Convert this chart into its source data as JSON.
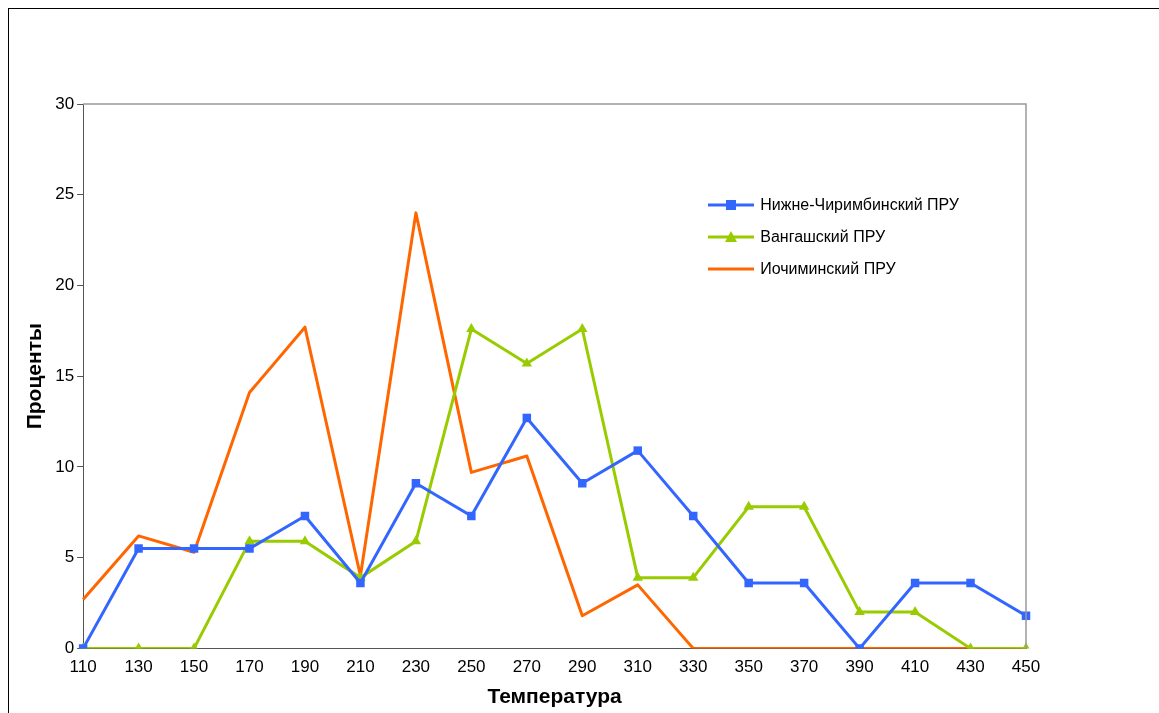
{
  "chart_data": {
    "type": "line",
    "xlabel": "Температура",
    "ylabel": "Проценты",
    "categories": [
      "110",
      "130",
      "150",
      "170",
      "190",
      "210",
      "230",
      "250",
      "270",
      "290",
      "310",
      "330",
      "350",
      "370",
      "390",
      "410",
      "430",
      "450"
    ],
    "ylim": [
      0,
      30
    ],
    "yticks": [
      0,
      5,
      10,
      15,
      20,
      25,
      30
    ],
    "grid": false,
    "legend": "top right",
    "series": [
      {
        "name": "Нижне-Чиримбинский ПРУ",
        "color": "#3366ff",
        "marker": "square",
        "values": [
          0,
          5.5,
          5.5,
          5.5,
          7.3,
          3.6,
          9.1,
          7.3,
          12.7,
          9.1,
          10.9,
          7.3,
          3.6,
          3.6,
          0,
          3.6,
          3.6,
          1.8
        ]
      },
      {
        "name": "Вангашский ПРУ",
        "color": "#99cc00",
        "marker": "triangle",
        "values": [
          0,
          0,
          0,
          5.9,
          5.9,
          3.9,
          5.9,
          17.6,
          15.7,
          17.6,
          3.9,
          3.9,
          7.8,
          7.8,
          2.0,
          2.0,
          0,
          0
        ]
      },
      {
        "name": "Иочиминский ПРУ",
        "color": "#ff6600",
        "marker": "none",
        "values": [
          2.7,
          6.2,
          5.3,
          14.1,
          17.7,
          4.0,
          24.0,
          9.7,
          10.6,
          1.8,
          3.5,
          0,
          0,
          0,
          0,
          0,
          0,
          0
        ]
      }
    ]
  }
}
